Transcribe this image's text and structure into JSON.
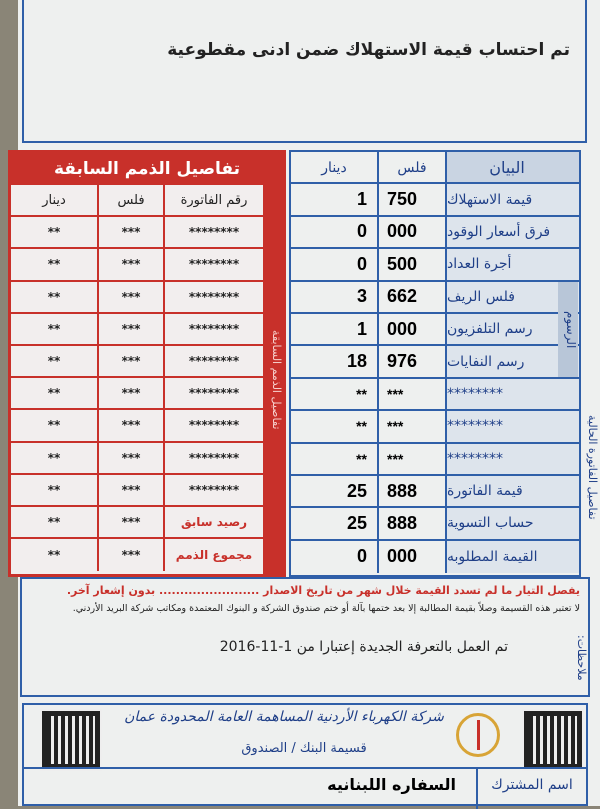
{
  "title": "تم احتساب قيمة الاستهلاك ضمن ادنى مقطوعية",
  "previous": {
    "title": "تفاصيل الذمم السابقة",
    "side_label": "تفاصيل الذمم السابقة",
    "headers": {
      "invoice": "رقم الفاتورة",
      "fils": "فلس",
      "dinar": "دينار"
    },
    "rows": [
      {
        "invoice": "********",
        "fils": "***",
        "dinar": "**"
      },
      {
        "invoice": "********",
        "fils": "***",
        "dinar": "**"
      },
      {
        "invoice": "********",
        "fils": "***",
        "dinar": "**"
      },
      {
        "invoice": "********",
        "fils": "***",
        "dinar": "**"
      },
      {
        "invoice": "********",
        "fils": "***",
        "dinar": "**"
      },
      {
        "invoice": "********",
        "fils": "***",
        "dinar": "**"
      },
      {
        "invoice": "********",
        "fils": "***",
        "dinar": "**"
      },
      {
        "invoice": "********",
        "fils": "***",
        "dinar": "**"
      },
      {
        "invoice": "********",
        "fils": "***",
        "dinar": "**"
      },
      {
        "invoice": "رصيد سابق",
        "fils": "***",
        "dinar": "**"
      },
      {
        "invoice": "مجموع الذمم",
        "fils": "***",
        "dinar": "**"
      }
    ]
  },
  "current": {
    "side_label": "تفاصيل الفاتورة الحالية",
    "fees_label": "الرسوم",
    "headers": {
      "label": "البيان",
      "fils": "فلس",
      "dinar": "دينار"
    },
    "rows": [
      {
        "label": "قيمة الاستهلاك",
        "fils": "750",
        "dinar": "1"
      },
      {
        "label": "فرق أسعار الوقود",
        "fils": "000",
        "dinar": "0"
      },
      {
        "label": "أجرة العداد",
        "fils": "500",
        "dinar": "0"
      },
      {
        "label": "فلس الريف",
        "fils": "662",
        "dinar": "3"
      },
      {
        "label": "رسم التلفزيون",
        "fils": "000",
        "dinar": "1"
      },
      {
        "label": "رسم النفايات",
        "fils": "976",
        "dinar": "18"
      },
      {
        "label": "********",
        "fils": "***",
        "dinar": "**"
      },
      {
        "label": "********",
        "fils": "***",
        "dinar": "**"
      },
      {
        "label": "********",
        "fils": "***",
        "dinar": "**"
      },
      {
        "label": "قيمة الفاتورة",
        "fils": "888",
        "dinar": "25"
      },
      {
        "label": "حساب التسوية",
        "fils": "888",
        "dinar": "25"
      },
      {
        "label": "القيمة المطلوبه",
        "fils": "000",
        "dinar": "0"
      }
    ]
  },
  "notes": {
    "warning": "يفصل التيار ما لم تسدد القيمة خلال شهر من تاريخ الاصدار ........................ بدون إشعار آخر.",
    "receipt": "لا تعتبر هذه القسيمة وصلاً بقيمة المطالبة إلا بعد ختمها بآلة أو ختم صندوق الشركة و البنوك المعتمدة ومكاتب شركة البريد الأردني.",
    "tariff": "تم العمل بالتعرفة الجديدة إعتبارا من 1-11-2016",
    "label": "ملاحظات:"
  },
  "footer": {
    "company": "شركة الكهرباء الأردنية المساهمة العامة المحدودة عمان",
    "coupon": "قسيمة البنك / الصندوق",
    "customer_label": "اسم المشترك",
    "customer_name": "السفاره اللبنانيه"
  },
  "colors": {
    "red": "#c8302a",
    "blue": "#2f5fa8"
  }
}
